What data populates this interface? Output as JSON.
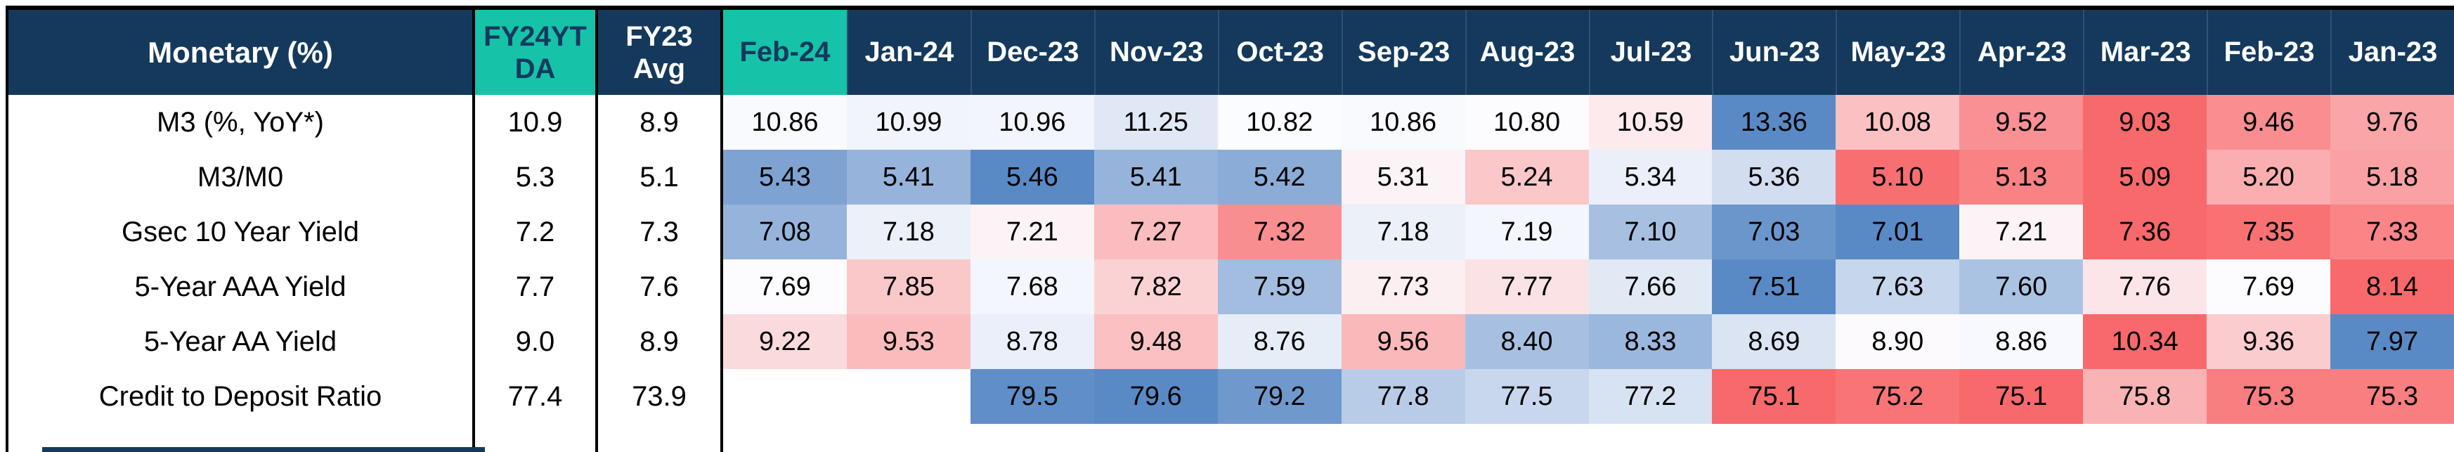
{
  "colors": {
    "navy": "#14395C",
    "teal": "#16C2A8",
    "heat_low": "#F8696B",
    "heat_mid": "#FCFCFF",
    "heat_high": "#5A8AC6",
    "blank_cell": "#FFFFFF",
    "header_text": "#FFFFFF",
    "value_text": "#000000"
  },
  "header": {
    "title": "Monetary (%)",
    "fy24_lines": [
      "FY24YT",
      "DA"
    ],
    "fy23_lines": [
      "FY23",
      "Avg"
    ]
  },
  "chart_data": {
    "type": "heatmap",
    "title": "Monetary (%)",
    "summary_columns": [
      "FY24YTDA",
      "FY23 Avg"
    ],
    "month_columns": [
      "Feb-24",
      "Jan-24",
      "Dec-23",
      "Nov-23",
      "Oct-23",
      "Sep-23",
      "Aug-23",
      "Jul-23",
      "Jun-23",
      "May-23",
      "Apr-23",
      "Mar-23",
      "Feb-23",
      "Jan-23"
    ],
    "highlighted_month": "Feb-24",
    "color_scale": {
      "low_color": "#F8696B",
      "mid_color": "#FCFCFF",
      "high_color": "#5A8AC6",
      "midpoint": "median",
      "note": "per-row scale; high_is indicates which extreme is blue vs red"
    },
    "rows": [
      {
        "label": "M3 (%, YoY*)",
        "fy24ytda": "10.9",
        "fy23_avg": "8.9",
        "high_is": "blue",
        "values": [
          "10.86",
          "10.99",
          "10.96",
          "11.25",
          "10.82",
          "10.86",
          "10.80",
          "10.59",
          "13.36",
          "10.08",
          "9.52",
          "9.03",
          "9.46",
          "9.76"
        ]
      },
      {
        "label": "M3/M0",
        "fy24ytda": "5.3",
        "fy23_avg": "5.1",
        "high_is": "blue",
        "values": [
          "5.43",
          "5.41",
          "5.46",
          "5.41",
          "5.42",
          "5.31",
          "5.24",
          "5.34",
          "5.36",
          "5.10",
          "5.13",
          "5.09",
          "5.20",
          "5.18"
        ]
      },
      {
        "label": "Gsec 10 Year Yield",
        "fy24ytda": "7.2",
        "fy23_avg": "7.3",
        "high_is": "red",
        "values": [
          "7.08",
          "7.18",
          "7.21",
          "7.27",
          "7.32",
          "7.18",
          "7.19",
          "7.10",
          "7.03",
          "7.01",
          "7.21",
          "7.36",
          "7.35",
          "7.33"
        ]
      },
      {
        "label": "5-Year AAA Yield",
        "fy24ytda": "7.7",
        "fy23_avg": "7.6",
        "high_is": "red",
        "values": [
          "7.69",
          "7.85",
          "7.68",
          "7.82",
          "7.59",
          "7.73",
          "7.77",
          "7.66",
          "7.51",
          "7.63",
          "7.60",
          "7.76",
          "7.69",
          "8.14"
        ]
      },
      {
        "label": "5-Year AA Yield",
        "fy24ytda": "9.0",
        "fy23_avg": "8.9",
        "high_is": "red",
        "values": [
          "9.22",
          "9.53",
          "8.78",
          "9.48",
          "8.76",
          "9.56",
          "8.40",
          "8.33",
          "8.69",
          "8.90",
          "8.86",
          "10.34",
          "9.36",
          "7.97"
        ]
      },
      {
        "label": "Credit to Deposit Ratio",
        "fy24ytda": "77.4",
        "fy23_avg": "73.9",
        "high_is": "blue",
        "values": [
          "",
          "",
          "79.5",
          "79.6",
          "79.2",
          "77.8",
          "77.5",
          "77.2",
          "75.1",
          "75.2",
          "75.1",
          "75.8",
          "75.3",
          "75.3"
        ]
      }
    ]
  }
}
